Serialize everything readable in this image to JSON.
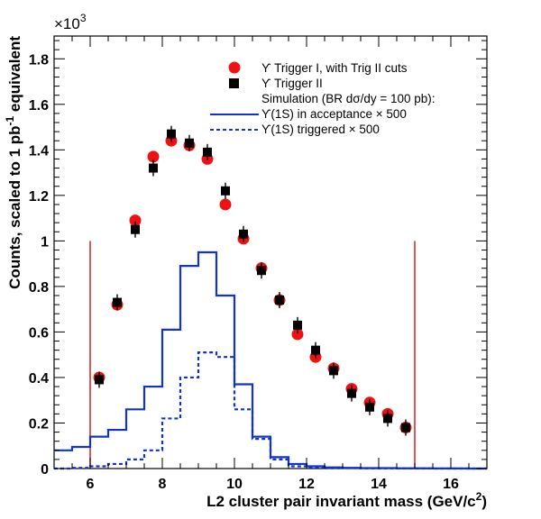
{
  "chart_data": {
    "type": "scatter",
    "xlabel_main": "L2 cluster pair invariant mass (GeV/c",
    "xlabel_sup": "2",
    "xlabel_tail": ")",
    "ylabel_main": "Counts, scaled to 1 pb",
    "ylabel_sup": "-1",
    "ylabel_tail": " equivalent",
    "multiplier_base": "×10",
    "multiplier_exp": "3",
    "xlim": [
      5,
      17
    ],
    "ylim": [
      0,
      1.9
    ],
    "xticks": [
      6,
      8,
      10,
      12,
      14,
      16
    ],
    "xtick_labels": [
      "6",
      "8",
      "10",
      "12",
      "14",
      "16"
    ],
    "yticks": [
      0,
      0.2,
      0.4,
      0.6,
      0.8,
      1,
      1.2,
      1.4,
      1.6,
      1.8
    ],
    "ytick_labels": [
      "0",
      "0.2",
      "0.4",
      "0.6",
      "0.8",
      "1",
      "1.2",
      "1.4",
      "1.6",
      "1.8"
    ],
    "cut_lines": [
      6,
      15
    ],
    "legend": {
      "placement": "top-right",
      "entries": [
        {
          "text": "ϒ Trigger I, with Trig II cuts",
          "symbol": "circle"
        },
        {
          "text": "ϒ Trigger II",
          "symbol": "square"
        },
        {
          "text": "Simulation (BR dσ/dy = 100 pb):",
          "symbol": "none"
        },
        {
          "text": "ϒ(1S) in acceptance × 500",
          "symbol": "solid-line"
        },
        {
          "text": "ϒ(1S) triggered × 500",
          "symbol": "dashed-line"
        }
      ]
    },
    "series": [
      {
        "marker": "circle",
        "color": "#ee1111",
        "x": [
          6.25,
          6.75,
          7.25,
          7.75,
          8.25,
          8.75,
          9.25,
          9.75,
          10.25,
          10.75,
          11.25,
          11.75,
          12.25,
          12.75,
          13.25,
          13.75,
          14.25,
          14.75
        ],
        "y": [
          0.4,
          0.72,
          1.09,
          1.37,
          1.44,
          1.42,
          1.36,
          1.16,
          1.01,
          0.88,
          0.74,
          0.59,
          0.49,
          0.44,
          0.35,
          0.29,
          0.24,
          0.18
        ]
      },
      {
        "marker": "square",
        "color": "#000000",
        "x": [
          6.25,
          6.75,
          7.25,
          7.75,
          8.25,
          8.75,
          9.25,
          9.75,
          10.25,
          10.75,
          11.25,
          11.75,
          12.25,
          12.75,
          13.25,
          13.75,
          14.25,
          14.75
        ],
        "y": [
          0.39,
          0.73,
          1.05,
          1.32,
          1.47,
          1.43,
          1.39,
          1.22,
          1.03,
          0.87,
          0.74,
          0.63,
          0.52,
          0.43,
          0.33,
          0.27,
          0.22,
          0.18
        ]
      },
      {
        "style": "solid-histogram",
        "color": "#1133cc",
        "edges": [
          5,
          5.5,
          6,
          6.5,
          7,
          7.5,
          8,
          8.5,
          9,
          9.5,
          10,
          10.5,
          11,
          11.5,
          12,
          12.5,
          13,
          13.5,
          14,
          14.5,
          15,
          15.5,
          16,
          16.5,
          17
        ],
        "values": [
          0.08,
          0.095,
          0.14,
          0.17,
          0.26,
          0.36,
          0.61,
          0.89,
          0.95,
          0.76,
          0.37,
          0.14,
          0.05,
          0.02,
          0.01,
          0.005,
          0.003,
          0.002,
          0.002,
          0.001,
          0.001,
          0.0005,
          0.0005,
          0.0
        ]
      },
      {
        "style": "dashed-histogram",
        "color": "#1133cc",
        "edges": [
          5,
          5.5,
          6,
          6.5,
          7,
          7.5,
          8,
          8.5,
          9,
          9.5,
          10,
          10.5,
          11,
          11.5,
          12,
          12.5,
          13,
          13.5,
          14,
          14.5,
          15,
          15.5,
          16,
          16.5,
          17
        ],
        "values": [
          0.0,
          0.003,
          0.01,
          0.02,
          0.04,
          0.08,
          0.22,
          0.4,
          0.51,
          0.49,
          0.26,
          0.13,
          0.04,
          0.01,
          0.005,
          0.003,
          0.002,
          0.001,
          0.001,
          0.0005,
          0.0005,
          0.0,
          0.0,
          0.0
        ]
      }
    ]
  }
}
